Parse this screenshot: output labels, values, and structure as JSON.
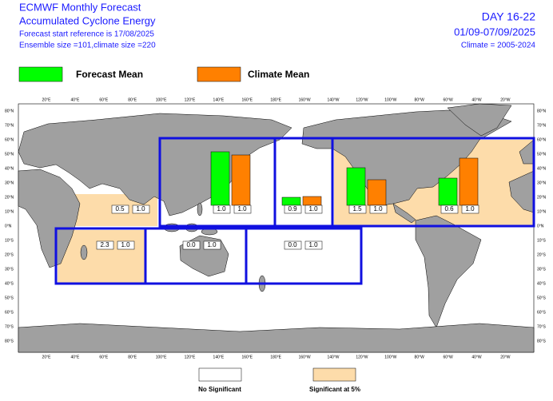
{
  "header": {
    "title": "ECMWF Monthly Forecast",
    "subtitle": "Accumulated Cyclone Energy",
    "start": "Forecast start reference is 17/08/2025",
    "ensemble": "Ensemble size =101,climate size =220",
    "period": "DAY 16-22",
    "dates": "01/09-07/09/2025",
    "climate": "Climate = 2005-2024"
  },
  "legend": {
    "forecast": "Forecast Mean",
    "forecast_color": "#00ff00",
    "climate": "Climate Mean",
    "climate_color": "#ff8000"
  },
  "lon_labels": [
    "20°E",
    "40°E",
    "60°E",
    "80°E",
    "100°E",
    "120°E",
    "140°E",
    "160°E",
    "180°E",
    "160°W",
    "140°W",
    "120°W",
    "100°W",
    "80°W",
    "60°W",
    "40°W",
    "20°W"
  ],
  "lat_labels": [
    "80°N",
    "70°N",
    "60°N",
    "50°N",
    "40°N",
    "30°N",
    "20°N",
    "10°N",
    "0°N",
    "10°S",
    "20°S",
    "30°S",
    "40°S",
    "50°S",
    "60°S",
    "70°S",
    "80°S"
  ],
  "regions": [
    {
      "forecast_label": "0.5",
      "climate_label": "1.0"
    },
    {
      "forecast_label": "1.0",
      "climate_label": "1.0",
      "forecast": 67,
      "climate": 63
    },
    {
      "forecast_label": "0.9",
      "climate_label": "1.0",
      "forecast": 10,
      "climate": 11
    },
    {
      "forecast_label": "1.5",
      "climate_label": "1.0",
      "forecast": 47,
      "climate": 32
    },
    {
      "forecast_label": "0.6",
      "climate_label": "1.0",
      "forecast": 34,
      "climate": 59
    },
    {
      "forecast_label": "2.3",
      "climate_label": "1.0"
    },
    {
      "forecast_label": "0.0",
      "climate_label": "1.0"
    },
    {
      "forecast_label": "0.0",
      "climate_label": "1.0"
    }
  ],
  "significance": {
    "none": "No Significant",
    "significant": "Significant at 5%",
    "significant_color": "#fddcaa"
  }
}
